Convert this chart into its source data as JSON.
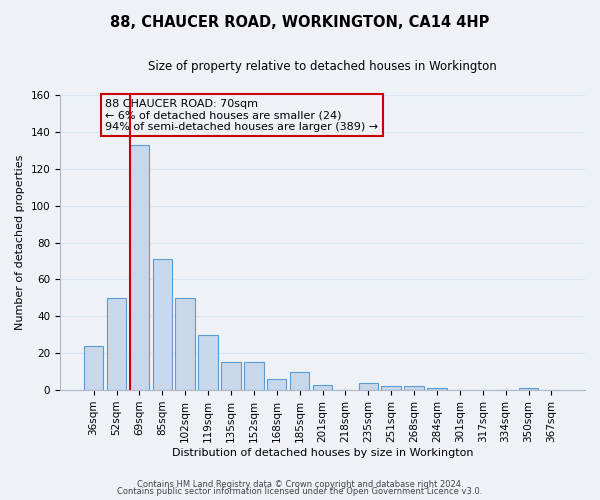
{
  "title": "88, CHAUCER ROAD, WORKINGTON, CA14 4HP",
  "subtitle": "Size of property relative to detached houses in Workington",
  "xlabel": "Distribution of detached houses by size in Workington",
  "ylabel": "Number of detached properties",
  "bar_labels": [
    "36sqm",
    "52sqm",
    "69sqm",
    "85sqm",
    "102sqm",
    "119sqm",
    "135sqm",
    "152sqm",
    "168sqm",
    "185sqm",
    "201sqm",
    "218sqm",
    "235sqm",
    "251sqm",
    "268sqm",
    "284sqm",
    "301sqm",
    "317sqm",
    "334sqm",
    "350sqm",
    "367sqm"
  ],
  "bar_heights": [
    24,
    50,
    133,
    71,
    50,
    30,
    15,
    15,
    6,
    10,
    3,
    0,
    4,
    2,
    2,
    1,
    0,
    0,
    0,
    1,
    0
  ],
  "bar_color": "#c8d8ea",
  "bar_edge_color": "#5b9bd5",
  "vline_index": 2,
  "vline_color": "#cc0000",
  "annotation_text": "88 CHAUCER ROAD: 70sqm\n← 6% of detached houses are smaller (24)\n94% of semi-detached houses are larger (389) →",
  "annotation_box_edge": "#cc0000",
  "ylim": [
    0,
    160
  ],
  "yticks": [
    0,
    20,
    40,
    60,
    80,
    100,
    120,
    140,
    160
  ],
  "footer_line1": "Contains HM Land Registry data © Crown copyright and database right 2024.",
  "footer_line2": "Contains public sector information licensed under the Open Government Licence v3.0.",
  "background_color": "#eef2f7",
  "grid_color": "#d8e4f0",
  "title_fontsize": 10.5,
  "subtitle_fontsize": 8.5,
  "axis_label_fontsize": 8,
  "tick_fontsize": 7.5,
  "annotation_fontsize": 8
}
